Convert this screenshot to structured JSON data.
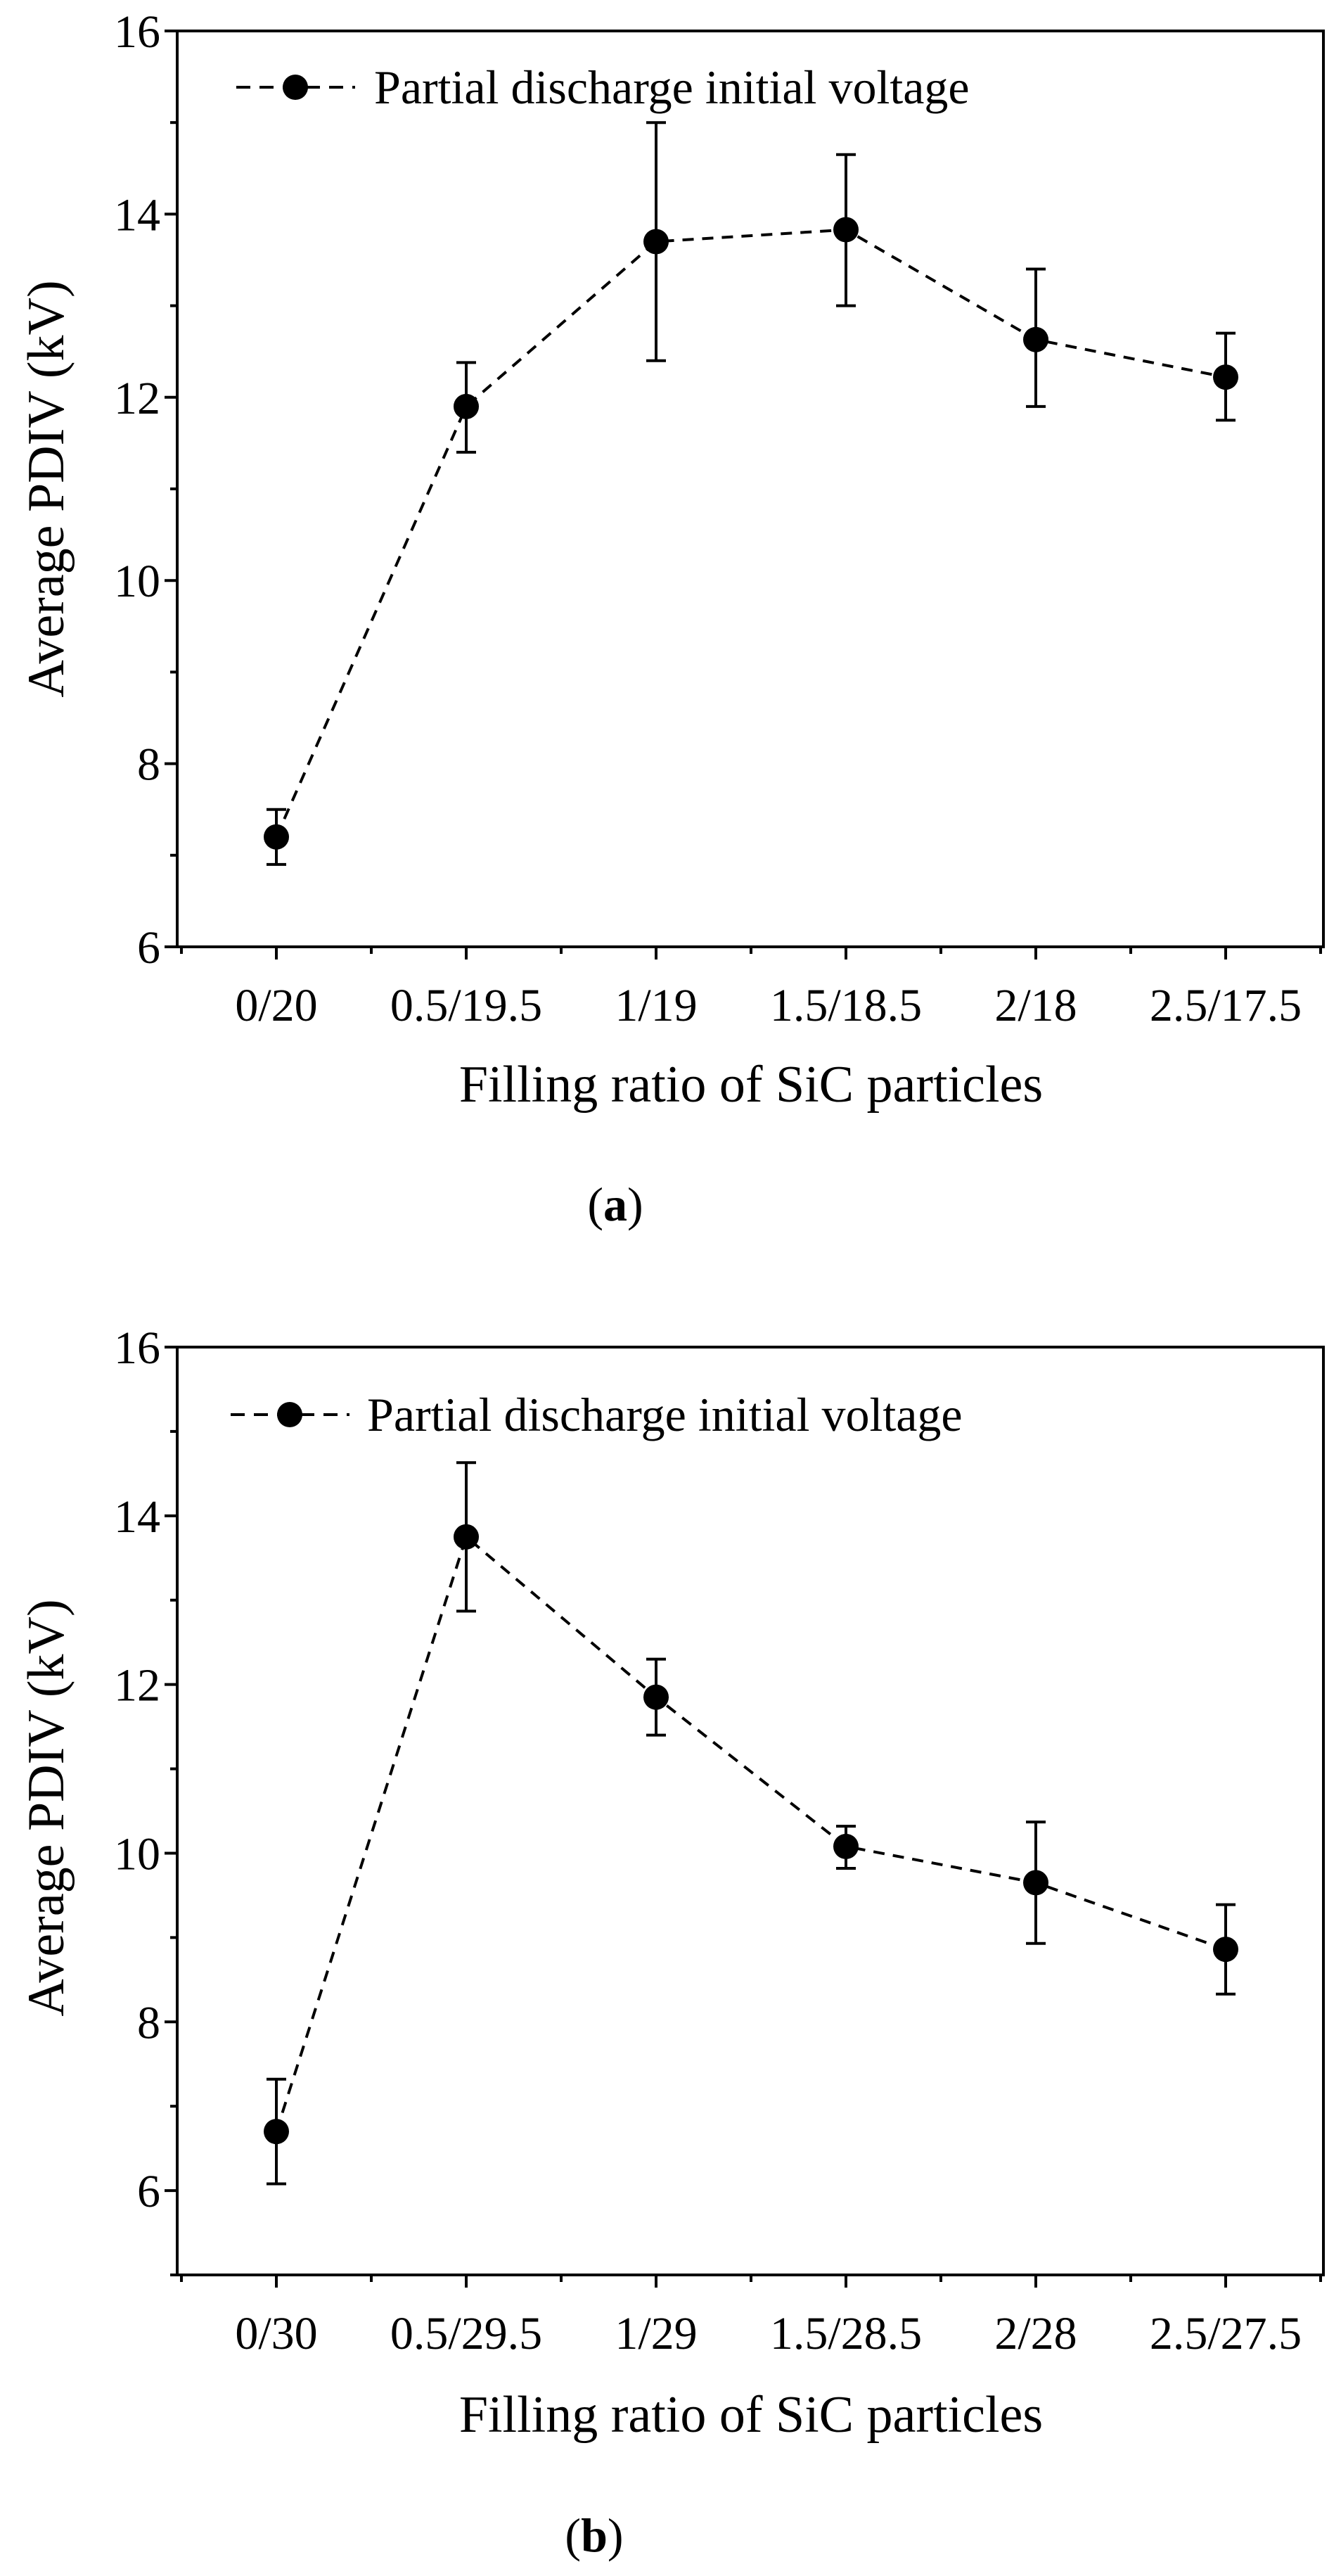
{
  "chart_data": [
    {
      "type": "line",
      "panel_label": "a",
      "title": "",
      "xlabel": "Filling ratio of SiC particles",
      "ylabel": "Average PDIV (kV)",
      "categories": [
        "0/20",
        "0.5/19.5",
        "1/19",
        "1.5/18.5",
        "2/18",
        "2.5/17.5"
      ],
      "ylim": [
        6,
        16
      ],
      "yticks": [
        6,
        8,
        10,
        12,
        14,
        16
      ],
      "legend_position": "top-left",
      "series": [
        {
          "name": "Partial discharge initial voltage",
          "values": [
            7.2,
            11.9,
            13.7,
            13.83,
            12.63,
            12.22
          ],
          "error_low": [
            6.9,
            11.4,
            12.4,
            13.0,
            11.9,
            11.75
          ],
          "error_high": [
            7.5,
            12.38,
            15.0,
            14.65,
            13.4,
            12.7
          ],
          "line_style": "dashed",
          "marker": "circle"
        }
      ]
    },
    {
      "type": "line",
      "panel_label": "b",
      "title": "",
      "xlabel": "Filling ratio of SiC particles",
      "ylabel": "Average PDIV (kV)",
      "categories": [
        "0/30",
        "0.5/29.5",
        "1/29",
        "1.5/28.5",
        "2/28",
        "2.5/27.5"
      ],
      "ylim": [
        5,
        16
      ],
      "yticks": [
        6,
        8,
        10,
        12,
        14,
        16
      ],
      "legend_position": "top-left",
      "series": [
        {
          "name": "Partial discharge initial voltage",
          "values": [
            6.7,
            13.75,
            11.85,
            10.08,
            9.65,
            8.86
          ],
          "error_low": [
            6.08,
            12.87,
            11.4,
            9.82,
            8.93,
            8.33
          ],
          "error_high": [
            7.32,
            14.63,
            12.3,
            10.32,
            10.37,
            9.39
          ],
          "line_style": "dashed",
          "marker": "circle"
        }
      ]
    }
  ],
  "captions": {
    "a": {
      "open": "(",
      "letter": "a",
      "close": ")"
    },
    "b": {
      "open": "(",
      "letter": "b",
      "close": ")"
    }
  }
}
